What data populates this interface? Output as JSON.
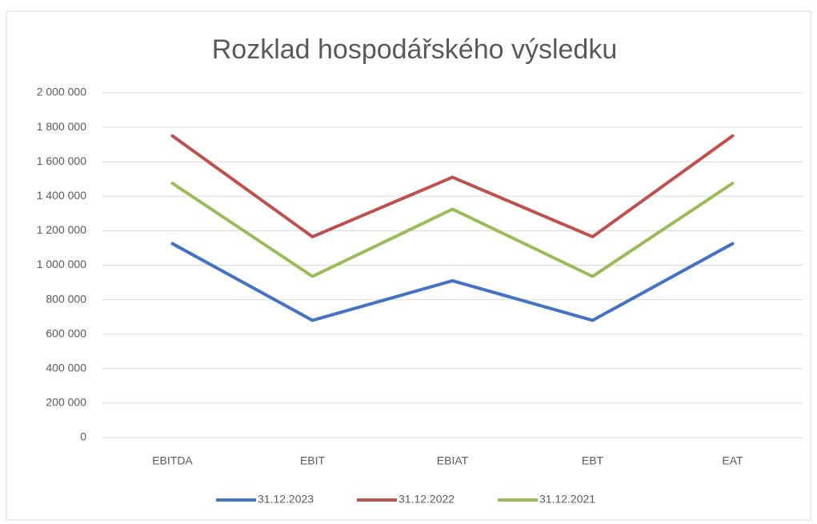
{
  "chart_data": {
    "type": "line",
    "title": "Rozklad hospodářského výsledku",
    "categories": [
      "EBITDA",
      "EBIT",
      "EBIAT",
      "EBT",
      "EAT"
    ],
    "series": [
      {
        "name": "31.12.2023",
        "color": "#4472c4",
        "values": [
          1125000,
          680000,
          910000,
          680000,
          1125000
        ]
      },
      {
        "name": "31.12.2022",
        "color": "#c0504d",
        "values": [
          1750000,
          1165000,
          1510000,
          1165000,
          1750000
        ]
      },
      {
        "name": "31.12.2021",
        "color": "#9bbb59",
        "values": [
          1475000,
          935000,
          1325000,
          935000,
          1475000
        ]
      }
    ],
    "ylim": [
      0,
      2000000
    ],
    "yticks": [
      0,
      {
        "value": 200000,
        "label": "200 000"
      },
      {
        "value": 400000,
        "label": "400 000"
      },
      {
        "value": 600000,
        "label": "600 000"
      },
      {
        "value": 800000,
        "label": "800 000"
      },
      {
        "value": 1000000,
        "label": "1 000 000"
      },
      {
        "value": 1200000,
        "label": "1 200 000"
      },
      {
        "value": 1400000,
        "label": "1 400 000"
      },
      {
        "value": 1600000,
        "label": "1 600 000"
      },
      {
        "value": 1800000,
        "label": "1 800 000"
      },
      {
        "value": 2000000,
        "label": "2 000 000"
      }
    ],
    "grid": true,
    "legend": "bottom"
  }
}
